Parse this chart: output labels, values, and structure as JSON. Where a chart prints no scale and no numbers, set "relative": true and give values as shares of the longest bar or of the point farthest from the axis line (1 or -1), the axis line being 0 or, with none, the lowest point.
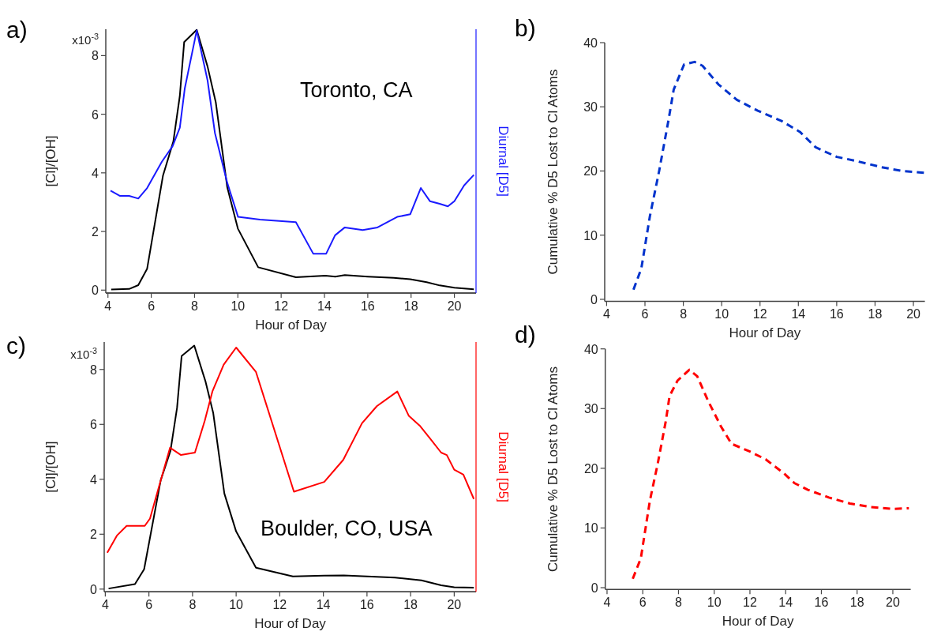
{
  "chart_data": [
    {
      "type": "line",
      "title": "a)",
      "xlabel": "Hour of Day",
      "ylabel": "[Cl]/[OH]",
      "annotations": [
        "Toronto, CA",
        "x10$^{-3}$"
      ],
      "xlim": [
        3.9,
        21
      ],
      "xticks": [
        4,
        6,
        8,
        10,
        12,
        14,
        16,
        18,
        20
      ],
      "ylim": [
        -0.1,
        8.9
      ],
      "yticks": [
        0,
        2,
        4,
        6,
        8
      ],
      "series": [
        {
          "color": "#000000",
          "x": [
            4.15,
            4.98,
            5.4,
            5.81,
            6.54,
            7.02,
            7.32,
            7.52,
            8.1,
            8.6,
            8.98,
            9.51,
            10.0,
            10.94,
            12.68,
            14.04,
            14.5,
            14.94,
            16,
            17.2,
            17.96,
            18.72,
            19.32,
            20,
            20.9
          ],
          "values": [
            0.02,
            0.04,
            0.17,
            0.73,
            3.9,
            5.07,
            6.63,
            8.46,
            8.88,
            7.63,
            6.41,
            3.51,
            2.1,
            0.78,
            0.44,
            0.49,
            0.46,
            0.51,
            0.46,
            0.42,
            0.37,
            0.27,
            0.16,
            0.08,
            0.03
          ]
        }
      ]
    },
    {
      "type": "line",
      "relative": true,
      "y2label": "Diurnal [D5]",
      "xlim": [
        3.9,
        21
      ],
      "series": [
        {
          "color": "#1a1aff",
          "axis": "y2",
          "x": [
            4.12,
            4.56,
            4.98,
            5.4,
            5.81,
            6.49,
            6.99,
            7.32,
            7.55,
            8.1,
            8.6,
            8.94,
            9.51,
            10.01,
            11.02,
            12.68,
            13.48,
            14.08,
            14.49,
            14.94,
            15.77,
            16.45,
            17.36,
            17.96,
            18.45,
            18.87,
            19.32,
            19.7,
            20,
            20.45,
            20.9
          ],
          "values": [
            0.39,
            0.37,
            0.37,
            0.36,
            0.4,
            0.5,
            0.56,
            0.63,
            0.78,
            1,
            0.81,
            0.61,
            0.42,
            0.29,
            0.28,
            0.27,
            0.15,
            0.15,
            0.22,
            0.25,
            0.24,
            0.25,
            0.29,
            0.3,
            0.4,
            0.35,
            0.34,
            0.33,
            0.35,
            0.41,
            0.45
          ]
        }
      ]
    },
    {
      "type": "line",
      "title": "b)",
      "xlabel": "Hour of Day",
      "ylabel": "Cumulative % D5 Lost to Cl Atoms",
      "xlim": [
        3.9,
        20.6
      ],
      "xticks": [
        4,
        6,
        8,
        10,
        12,
        14,
        16,
        18,
        20
      ],
      "ylim": [
        -0.3,
        40
      ],
      "yticks": [
        0,
        10,
        20,
        30,
        40
      ],
      "line_style": "dashed",
      "series": [
        {
          "color": "#0033cc",
          "x": [
            5.4,
            5.81,
            6.26,
            6.74,
            7.22,
            7.5,
            8.04,
            8.59,
            9.0,
            9.83,
            10.79,
            11.88,
            13.12,
            14.08,
            14.9,
            16,
            16.96,
            18.33,
            19.42,
            20.59
          ],
          "values": [
            1.5,
            4.8,
            13,
            20,
            27.8,
            32.7,
            36.6,
            37,
            36.4,
            33.5,
            31.1,
            29.4,
            27.8,
            26.1,
            23.7,
            22.2,
            21.6,
            20.6,
            20,
            19.7
          ]
        }
      ]
    },
    {
      "type": "line",
      "title": "c)",
      "xlabel": "Hour of Day",
      "ylabel": "[Cl]/[OH]",
      "annotations": [
        "Boulder, CO, USA",
        "x10$^{-3}$"
      ],
      "xlim": [
        3.95,
        21
      ],
      "xticks": [
        4,
        6,
        8,
        10,
        12,
        14,
        16,
        18,
        20
      ],
      "ylim": [
        -0.1,
        9.0
      ],
      "yticks": [
        0,
        2,
        4,
        6,
        8
      ],
      "series": [
        {
          "color": "#000000",
          "x": [
            4.15,
            5.36,
            5.78,
            6.54,
            6.99,
            7.29,
            7.5,
            8.08,
            8.6,
            8.95,
            9.46,
            10.0,
            10.91,
            12.6,
            14.04,
            14.94,
            17.28,
            18.5,
            19.4,
            20,
            20.9
          ],
          "values": [
            0.02,
            0.18,
            0.72,
            3.96,
            5.04,
            6.6,
            8.49,
            8.87,
            7.55,
            6.41,
            3.48,
            2.1,
            0.78,
            0.46,
            0.49,
            0.5,
            0.42,
            0.32,
            0.14,
            0.07,
            0.05
          ]
        }
      ]
    },
    {
      "type": "line",
      "relative": true,
      "y2label": "Diurnal [D5]",
      "xlim": [
        3.95,
        21
      ],
      "series": [
        {
          "color": "#ff0000",
          "axis": "y2",
          "x": [
            4.09,
            4.53,
            4.98,
            5.81,
            6.05,
            6.49,
            6.97,
            7.47,
            8.11,
            8.56,
            8.91,
            9.43,
            10.0,
            10.91,
            12.65,
            14.04,
            14.91,
            15.77,
            16.45,
            17.39,
            17.92,
            18.42,
            18.87,
            19.4,
            19.66,
            20,
            20.42,
            20.9
          ],
          "values": [
            0.16,
            0.23,
            0.27,
            0.27,
            0.3,
            0.44,
            0.59,
            0.56,
            0.57,
            0.7,
            0.82,
            0.93,
            1,
            0.9,
            0.41,
            0.45,
            0.54,
            0.69,
            0.76,
            0.82,
            0.72,
            0.68,
            0.63,
            0.57,
            0.56,
            0.5,
            0.48,
            0.38
          ]
        }
      ]
    },
    {
      "type": "line",
      "title": "d)",
      "xlabel": "Hour of Day",
      "ylabel": "Cumulative % D5 Lost to Cl Atoms",
      "xlim": [
        3.9,
        21
      ],
      "xticks": [
        4,
        6,
        8,
        10,
        12,
        14,
        16,
        18,
        20
      ],
      "ylim": [
        -0.3,
        40
      ],
      "yticks": [
        0,
        10,
        20,
        30,
        40
      ],
      "line_style": "dashed",
      "series": [
        {
          "color": "#ff0000",
          "x": [
            5.44,
            5.89,
            6.4,
            6.84,
            7.29,
            7.5,
            7.95,
            8.61,
            9.05,
            9.64,
            10.38,
            10.97,
            12,
            12.88,
            13.92,
            14.5,
            15.24,
            16.42,
            17.6,
            18.78,
            19.96,
            20.9
          ],
          "values": [
            1.5,
            4.9,
            14.6,
            20.8,
            27.9,
            32.1,
            34.7,
            36.5,
            35.4,
            31.4,
            27,
            24.1,
            22.8,
            21.5,
            19.1,
            17.5,
            16.4,
            15.1,
            14.1,
            13.5,
            13.2,
            13.3
          ]
        }
      ]
    }
  ]
}
